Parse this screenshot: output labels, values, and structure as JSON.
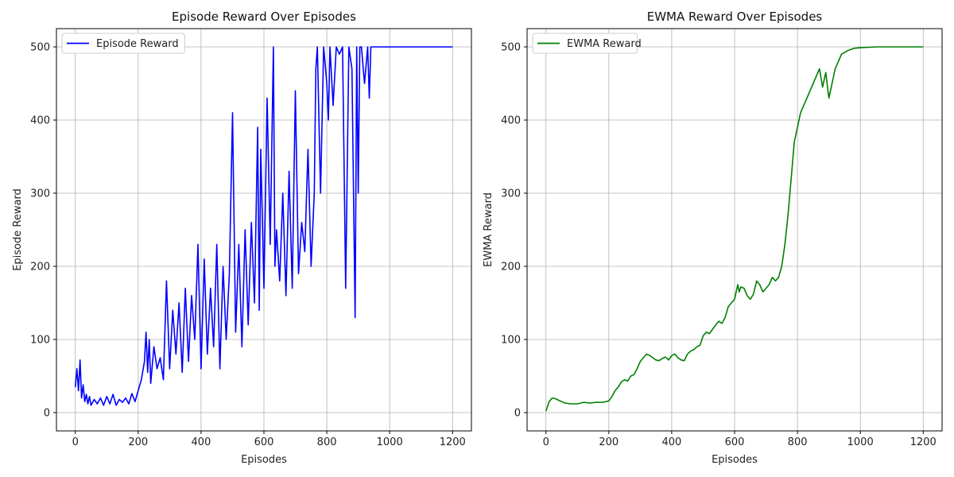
{
  "chart_data": [
    {
      "type": "line",
      "title": "Episode Reward Over Episodes",
      "xlabel": "Episodes",
      "ylabel": "Episode Reward",
      "xlim": [
        -60,
        1260
      ],
      "ylim": [
        -25,
        525
      ],
      "xticks": [
        0,
        200,
        400,
        600,
        800,
        1000,
        1200
      ],
      "yticks": [
        0,
        100,
        200,
        300,
        400,
        500
      ],
      "grid": true,
      "legend": "top-left",
      "color": "#0000ff",
      "series": [
        {
          "name": "Episode Reward",
          "x": [
            0,
            5,
            10,
            15,
            20,
            25,
            30,
            35,
            40,
            45,
            50,
            60,
            70,
            80,
            90,
            100,
            110,
            120,
            130,
            140,
            150,
            160,
            170,
            180,
            190,
            200,
            210,
            220,
            225,
            230,
            235,
            240,
            250,
            260,
            270,
            280,
            290,
            300,
            310,
            320,
            330,
            340,
            350,
            360,
            370,
            380,
            390,
            400,
            410,
            420,
            430,
            440,
            450,
            460,
            470,
            480,
            490,
            500,
            510,
            520,
            530,
            540,
            550,
            560,
            570,
            580,
            585,
            590,
            600,
            610,
            620,
            630,
            635,
            640,
            650,
            660,
            670,
            680,
            690,
            700,
            710,
            720,
            730,
            740,
            750,
            760,
            765,
            770,
            780,
            790,
            800,
            805,
            810,
            820,
            830,
            840,
            850,
            860,
            870,
            880,
            890,
            895,
            900,
            905,
            910,
            920,
            930,
            935,
            940,
            1000,
            1100,
            1200
          ],
          "y": [
            35,
            60,
            30,
            72,
            20,
            38,
            15,
            25,
            12,
            22,
            10,
            18,
            12,
            20,
            10,
            22,
            12,
            25,
            10,
            18,
            14,
            20,
            12,
            26,
            15,
            30,
            45,
            70,
            110,
            55,
            100,
            40,
            90,
            60,
            75,
            45,
            180,
            60,
            140,
            80,
            150,
            55,
            170,
            70,
            160,
            100,
            230,
            60,
            210,
            80,
            170,
            90,
            230,
            60,
            200,
            100,
            190,
            410,
            110,
            230,
            90,
            250,
            120,
            260,
            150,
            390,
            140,
            360,
            170,
            430,
            230,
            500,
            200,
            250,
            180,
            300,
            160,
            330,
            170,
            440,
            190,
            260,
            220,
            360,
            200,
            300,
            470,
            500,
            300,
            500,
            450,
            400,
            500,
            420,
            500,
            490,
            500,
            170,
            500,
            470,
            130,
            500,
            300,
            500,
            500,
            450,
            500,
            430,
            500,
            500,
            500,
            500
          ]
        }
      ]
    },
    {
      "type": "line",
      "title": "EWMA Reward Over Episodes",
      "xlabel": "Episodes",
      "ylabel": "EWMA Reward",
      "xlim": [
        -60,
        1260
      ],
      "ylim": [
        -25,
        525
      ],
      "xticks": [
        0,
        200,
        400,
        600,
        800,
        1000,
        1200
      ],
      "yticks": [
        0,
        100,
        200,
        300,
        400,
        500
      ],
      "grid": true,
      "legend": "top-left",
      "color": "#008000",
      "series": [
        {
          "name": "EWMA Reward",
          "x": [
            0,
            10,
            20,
            30,
            40,
            50,
            60,
            80,
            100,
            120,
            140,
            160,
            180,
            200,
            210,
            220,
            230,
            240,
            250,
            260,
            270,
            280,
            290,
            300,
            310,
            320,
            330,
            340,
            350,
            360,
            370,
            380,
            390,
            400,
            410,
            420,
            430,
            440,
            450,
            460,
            470,
            480,
            490,
            500,
            510,
            520,
            530,
            540,
            550,
            560,
            570,
            580,
            590,
            600,
            610,
            615,
            620,
            630,
            640,
            650,
            660,
            670,
            680,
            690,
            700,
            710,
            720,
            730,
            740,
            750,
            760,
            770,
            780,
            790,
            800,
            810,
            820,
            830,
            840,
            850,
            860,
            870,
            880,
            890,
            900,
            905,
            910,
            920,
            930,
            940,
            960,
            980,
            1000,
            1050,
            1100,
            1150,
            1200
          ],
          "y": [
            2,
            15,
            20,
            19,
            17,
            15,
            13,
            12,
            12,
            14,
            13,
            14,
            14,
            16,
            22,
            30,
            35,
            42,
            45,
            43,
            50,
            52,
            60,
            70,
            75,
            80,
            78,
            75,
            72,
            71,
            74,
            76,
            72,
            78,
            80,
            75,
            72,
            71,
            80,
            84,
            86,
            90,
            92,
            105,
            110,
            108,
            114,
            120,
            125,
            122,
            130,
            145,
            150,
            155,
            175,
            165,
            172,
            170,
            160,
            155,
            162,
            180,
            175,
            165,
            170,
            175,
            185,
            180,
            185,
            200,
            230,
            270,
            320,
            370,
            390,
            410,
            420,
            430,
            440,
            450,
            460,
            470,
            445,
            465,
            430,
            440,
            450,
            470,
            480,
            490,
            495,
            498,
            499,
            500,
            500,
            500,
            500
          ]
        }
      ]
    }
  ]
}
